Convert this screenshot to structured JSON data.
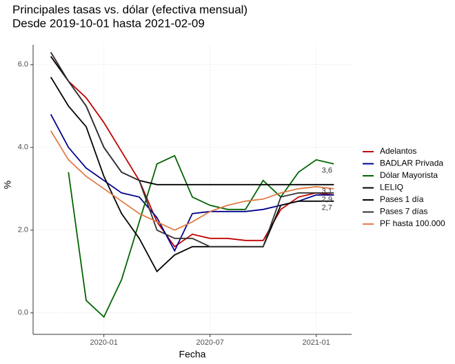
{
  "chart_data": {
    "type": "line",
    "title": "Principales tasas vs. dólar (efectiva mensual)",
    "subtitle": "Desde 2019-10-01 hasta 2021-02-09",
    "x_label": "Fecha",
    "y_label": "%",
    "x": [
      "2019-10",
      "2019-11",
      "2019-12",
      "2020-01",
      "2020-02",
      "2020-03",
      "2020-04",
      "2020-05",
      "2020-06",
      "2020-07",
      "2020-08",
      "2020-09",
      "2020-10",
      "2020-11",
      "2020-12",
      "2021-01",
      "2021-02"
    ],
    "xlim": [
      "2019-09",
      "2021-03"
    ],
    "xticks": [
      "2020-01",
      "2020-07",
      "2021-01"
    ],
    "ylim": [
      -0.52,
      6.48
    ],
    "yticks": [
      {
        "value": 0,
        "label": "0.0"
      },
      {
        "value": 2,
        "label": "2.0"
      },
      {
        "value": 4,
        "label": "4.0"
      },
      {
        "value": 6,
        "label": "6.0"
      }
    ],
    "grid": true,
    "series": [
      {
        "name": "Adelantos",
        "color": "#c00000",
        "values": [
          6.3,
          5.6,
          5.2,
          4.6,
          3.9,
          3.2,
          2.2,
          1.6,
          1.9,
          1.8,
          1.8,
          1.75,
          1.75,
          2.5,
          2.8,
          2.9,
          2.85
        ]
      },
      {
        "name": "BADLAR Privada",
        "color": "#00008b",
        "values": [
          4.8,
          4.0,
          3.5,
          3.2,
          2.9,
          2.8,
          2.3,
          1.5,
          2.4,
          2.45,
          2.45,
          2.45,
          2.5,
          2.6,
          2.7,
          2.85,
          2.85
        ]
      },
      {
        "name": "Dólar Mayorista",
        "color": "#006400",
        "values": [
          null,
          3.4,
          0.3,
          -0.1,
          0.8,
          2.2,
          3.6,
          3.8,
          2.8,
          2.6,
          2.5,
          2.5,
          3.2,
          2.8,
          3.4,
          3.7,
          3.6
        ]
      },
      {
        "name": "LELIQ",
        "color": "#000000",
        "values": [
          6.2,
          5.6,
          5.0,
          4.0,
          3.4,
          3.2,
          3.1,
          3.1,
          3.1,
          3.1,
          3.1,
          3.1,
          3.1,
          3.1,
          3.1,
          3.1,
          3.1
        ]
      },
      {
        "name": "Pases 1 día",
        "color": "#000000",
        "values": [
          5.7,
          5.0,
          4.5,
          3.3,
          2.4,
          1.8,
          1.0,
          1.4,
          1.6,
          1.6,
          1.6,
          1.6,
          1.6,
          2.6,
          2.7,
          2.7,
          2.7
        ]
      },
      {
        "name": "Pases 7 días",
        "color": "#333333",
        "values": [
          6.3,
          5.6,
          5.0,
          4.0,
          3.4,
          3.2,
          2.0,
          1.8,
          1.8,
          1.6,
          1.6,
          1.6,
          1.6,
          2.8,
          2.9,
          2.9,
          2.9
        ]
      },
      {
        "name": "PF hasta 100.000",
        "color": "#e07b45",
        "values": [
          4.4,
          3.7,
          3.3,
          3.0,
          2.7,
          2.4,
          2.2,
          2.0,
          2.2,
          2.45,
          2.6,
          2.7,
          2.75,
          2.9,
          3.0,
          3.05,
          3.0
        ]
      }
    ],
    "end_labels": [
      {
        "value": 3.6,
        "label": "3,6"
      },
      {
        "value": 3.1,
        "label": "3,1"
      },
      {
        "value": 2.9,
        "label": "2,9"
      },
      {
        "value": 2.7,
        "label": "2,7"
      }
    ]
  }
}
